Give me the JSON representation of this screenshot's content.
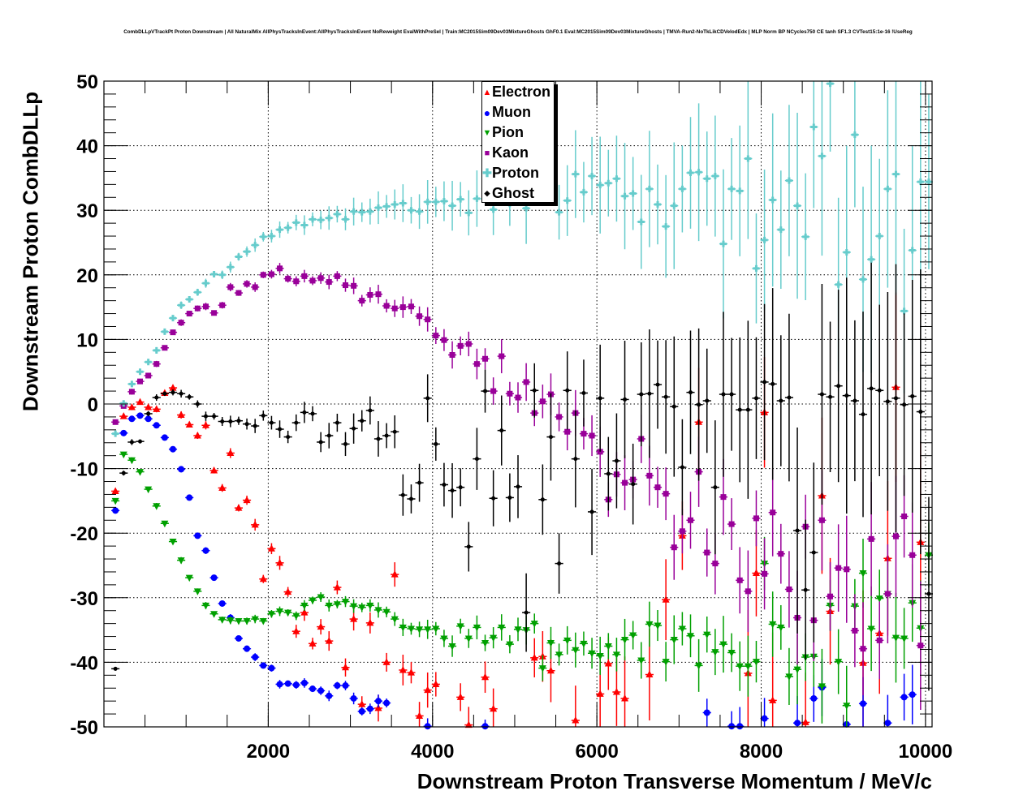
{
  "chart_data": {
    "type": "scatter",
    "title": "CombDLLpVTrackPt Proton Downstream | All NaturalMix AllPhysTracksInEvent:AllPhysTracksInEvent NoReweight EvalWithPreSel | Train:MC2015Sim09Dev03MixtureGhosts GhF0.1 Eval:MC2015Sim09Dev03MixtureGhosts | TMVA-Run2-NoTkLikCDVelodEdx | MLP Norm BP NCycles750 CE tanh SF1.3 CVTest15:1e-16 !UseReg",
    "xlabel": "Downstream Proton Transverse Momentum / MeV/c",
    "ylabel": "Downstream Proton CombDLLp",
    "xlim": [
      0,
      10080
    ],
    "ylim": [
      -50,
      50
    ],
    "xticks": [
      "2000",
      "4000",
      "6000",
      "8000",
      "10000"
    ],
    "yticks": [
      "-50",
      "-40",
      "-30",
      "-20",
      "-10",
      "0",
      "10",
      "20",
      "30",
      "40",
      "50"
    ],
    "grid": true,
    "legend_position": "top-center",
    "x_bins": {
      "start": 140,
      "step": 100,
      "count": 100
    },
    "series": [
      {
        "name": "Electron",
        "color": "#ff0000",
        "marker": "triangle-up",
        "values": [
          -13.5,
          -1.9,
          -0.5,
          0.3,
          -0.5,
          -0.8,
          1.7,
          2.5,
          -1.7,
          -3.2,
          -4.9,
          -3.3,
          -10.3,
          -13.0,
          -7.6,
          -16.1,
          -14.9,
          -18.7,
          -27.1,
          -22.4,
          -24.6,
          -29.1,
          -35.2,
          -32.3,
          -37.1,
          -34.5,
          -36.7,
          -28.4,
          -40.8,
          -33.3,
          -46.5,
          -33.9,
          -47.1,
          -40.0,
          -26.4,
          -41.2,
          -41.6,
          -48.3,
          -44.3,
          -43.4,
          null,
          null,
          -45.4,
          -49.7,
          null,
          -42.3,
          -47.2,
          null,
          null,
          null,
          null,
          -39.3,
          -39.1,
          -41.3,
          null,
          null,
          -49.0,
          null,
          null,
          -44.9,
          -40.2,
          -44.6,
          -45.6,
          null,
          null,
          -41.9,
          null,
          -30.3,
          null,
          -20.4,
          null,
          -2.8,
          null,
          null,
          null,
          null,
          null,
          -41.7,
          -26.2,
          -1.3,
          -45.9,
          null,
          null,
          null,
          -49.3,
          null,
          -14.2,
          -32.1,
          null,
          null,
          null,
          -40.1,
          null,
          -35.5,
          -23.9,
          2.6,
          null,
          null,
          -21.4,
          null
        ]
      },
      {
        "name": "Muon",
        "color": "#0000ff",
        "marker": "circle",
        "values": [
          -16.5,
          -4.5,
          -2.3,
          -1.8,
          -2.3,
          -3.3,
          -5.2,
          -7.0,
          -10.1,
          -14.5,
          -20.4,
          -22.7,
          -26.9,
          -30.9,
          -33.1,
          -36.3,
          -37.9,
          -39.2,
          -40.5,
          -40.9,
          -43.4,
          -43.3,
          -43.5,
          -43.2,
          -44.1,
          -44.4,
          -45.2,
          -43.6,
          -43.6,
          -45.6,
          -47.6,
          -47.2,
          -46.0,
          -46.3,
          null,
          null,
          null,
          null,
          -49.9,
          null,
          null,
          null,
          null,
          null,
          null,
          -49.9,
          null,
          null,
          null,
          null,
          null,
          null,
          null,
          null,
          null,
          null,
          null,
          null,
          null,
          null,
          null,
          null,
          null,
          null,
          null,
          null,
          null,
          null,
          null,
          null,
          null,
          null,
          -47.8,
          null,
          null,
          -49.9,
          -49.9,
          null,
          null,
          -48.7,
          null,
          null,
          null,
          -49.4,
          null,
          -45.6,
          -43.9,
          null,
          null,
          -49.6,
          null,
          -46.4,
          null,
          null,
          -49.4,
          null,
          -45.4,
          -45.0,
          null,
          null
        ]
      },
      {
        "name": "Pion",
        "color": "#00a000",
        "marker": "triangle-down",
        "values": [
          -15.0,
          -7.8,
          -8.7,
          -10.5,
          -13.2,
          -15.8,
          -18.5,
          -21.3,
          -24.2,
          -26.9,
          -29.0,
          -31.2,
          -32.5,
          -33.4,
          -33.5,
          -33.6,
          -33.6,
          -33.3,
          -33.6,
          -32.5,
          -32.1,
          -32.3,
          -32.8,
          -31.2,
          -30.4,
          -29.9,
          -31.2,
          -31.0,
          -30.6,
          -31.3,
          -31.5,
          -31.2,
          -31.9,
          -32.2,
          -33.3,
          -34.6,
          -34.8,
          -34.9,
          -34.9,
          -34.8,
          -36.3,
          -37.5,
          -34.4,
          -36.3,
          -34.6,
          -37.0,
          -36.2,
          -34.6,
          -37.2,
          -34.9,
          -35.0,
          -34.0,
          -40.9,
          -37.0,
          -38.8,
          -36.6,
          -38.1,
          -37.1,
          -38.6,
          -39.0,
          -37.5,
          -38.8,
          -36.5,
          -35.8,
          -39.7,
          -34.1,
          -34.3,
          -39.9,
          -36.5,
          -34.8,
          -35.9,
          -40.5,
          -35.7,
          -38.4,
          -37.2,
          -38.5,
          -40.6,
          -40.6,
          -39.9,
          -24.7,
          -34.1,
          -34.6,
          -42.2,
          -41.1,
          -39.2,
          -39.1,
          -43.7,
          -31.2,
          -39.9,
          -46.7,
          -31.3,
          -26.2,
          -34.8,
          -30.1,
          -29.4,
          -36.2,
          -36.3,
          -30.8,
          -34.7,
          -23.4
        ]
      },
      {
        "name": "Kaon",
        "color": "#990099",
        "marker": "square",
        "values": [
          -2.8,
          -0.3,
          1.9,
          3.5,
          4.4,
          6.2,
          8.7,
          11.1,
          12.6,
          14.0,
          14.8,
          15.1,
          14.1,
          15.3,
          18.1,
          17.2,
          18.6,
          18.1,
          20.0,
          20.1,
          21.0,
          19.4,
          19.0,
          19.8,
          19.1,
          19.5,
          18.9,
          19.8,
          18.4,
          18.3,
          16.0,
          16.9,
          17.0,
          15.2,
          14.8,
          15.0,
          15.1,
          13.6,
          13.1,
          10.6,
          9.9,
          7.6,
          9.0,
          9.3,
          6.2,
          7.0,
          2.0,
          7.4,
          1.6,
          1.0,
          3.4,
          -1.4,
          0.4,
          1.5,
          -2.0,
          -4.3,
          -1.4,
          -4.6,
          -4.9,
          -7.4,
          -14.8,
          -10.9,
          -12.2,
          -11.7,
          -5.4,
          -11.1,
          -12.9,
          -13.9,
          -22.2,
          -19.7,
          -18.0,
          -10.5,
          -23.0,
          -24.7,
          -14.4,
          -18.6,
          -27.3,
          -29.0,
          -17.7,
          -26.3,
          -16.8,
          -23.2,
          -28.7,
          -33.1,
          -19.0,
          -33.5,
          -18.0,
          -29.8,
          -25.4,
          -25.6,
          -35.1,
          -37.9,
          -20.9,
          -36.6,
          -29.4,
          -20.5,
          -17.4,
          -23.4,
          -37.4,
          null
        ]
      },
      {
        "name": "Proton",
        "color": "#66cccc",
        "marker": "cross",
        "values": [
          -4.6,
          0.1,
          3.1,
          5.0,
          6.5,
          8.3,
          11.2,
          13.3,
          15.3,
          16.2,
          17.3,
          18.7,
          20.1,
          20.0,
          21.2,
          22.8,
          23.6,
          24.6,
          25.9,
          26.0,
          27.0,
          27.3,
          28.1,
          27.7,
          28.6,
          28.5,
          28.8,
          29.4,
          28.6,
          29.8,
          29.7,
          29.8,
          30.4,
          30.6,
          30.9,
          31.1,
          30.0,
          29.8,
          31.3,
          31.3,
          31.4,
          30.7,
          31.7,
          29.6,
          31.8,
          null,
          30.1,
          null,
          31.0,
          null,
          30.3,
          null,
          null,
          null,
          29.7,
          31.5,
          35.6,
          32.8,
          35.3,
          33.9,
          34.2,
          34.9,
          32.2,
          32.6,
          28.2,
          33.3,
          30.9,
          27.5,
          30.7,
          33.3,
          35.8,
          35.9,
          34.9,
          35.3,
          24.8,
          33.3,
          33.0,
          38.0,
          21.0,
          25.4,
          31.6,
          27.0,
          34.6,
          30.7,
          25.9,
          42.9,
          38.4,
          49.6,
          18.5,
          23.5,
          41.7,
          19.3,
          22.4,
          26.0,
          33.3,
          35.6,
          14.4,
          23.8,
          34.4,
          34.4
        ]
      },
      {
        "name": "Ghost",
        "color": "#000000",
        "marker": "dot",
        "values": [
          -41.0,
          -10.7,
          -5.9,
          -5.8,
          -1.5,
          1.0,
          1.6,
          1.8,
          1.6,
          1.1,
          0.0,
          -1.9,
          -1.9,
          -2.7,
          -2.7,
          -2.6,
          -3.1,
          -3.4,
          -1.8,
          -2.9,
          -3.9,
          -5.1,
          -2.9,
          -1.3,
          -1.5,
          -5.9,
          -4.9,
          -2.9,
          -6.2,
          -3.8,
          -2.6,
          -1.0,
          -5.4,
          -4.9,
          -4.3,
          -14.1,
          -14.7,
          -12.2,
          0.9,
          -6.2,
          -12.5,
          -13.4,
          -12.9,
          -22.1,
          -8.5,
          2.0,
          -14.6,
          -4.1,
          -14.5,
          -12.8,
          -32.3,
          2.1,
          -14.8,
          -5.1,
          -24.7,
          2.1,
          -8.5,
          1.7,
          -16.7,
          0.9,
          -10.8,
          -8.8,
          0.7,
          -12.4,
          1.5,
          1.6,
          3.0,
          1.1,
          -0.4,
          -9.8,
          1.8,
          -0.1,
          0.5,
          -12.9,
          1.5,
          1.5,
          -0.9,
          -0.9,
          0.9,
          3.4,
          3.1,
          0.5,
          1.0,
          -19.6,
          -28.8,
          -23.0,
          1.5,
          1.1,
          2.8,
          1.3,
          0.5,
          -1.6,
          2.4,
          2.1,
          0.4,
          0.9,
          -0.1,
          1.2,
          -1.2,
          -29.4
        ]
      }
    ]
  }
}
